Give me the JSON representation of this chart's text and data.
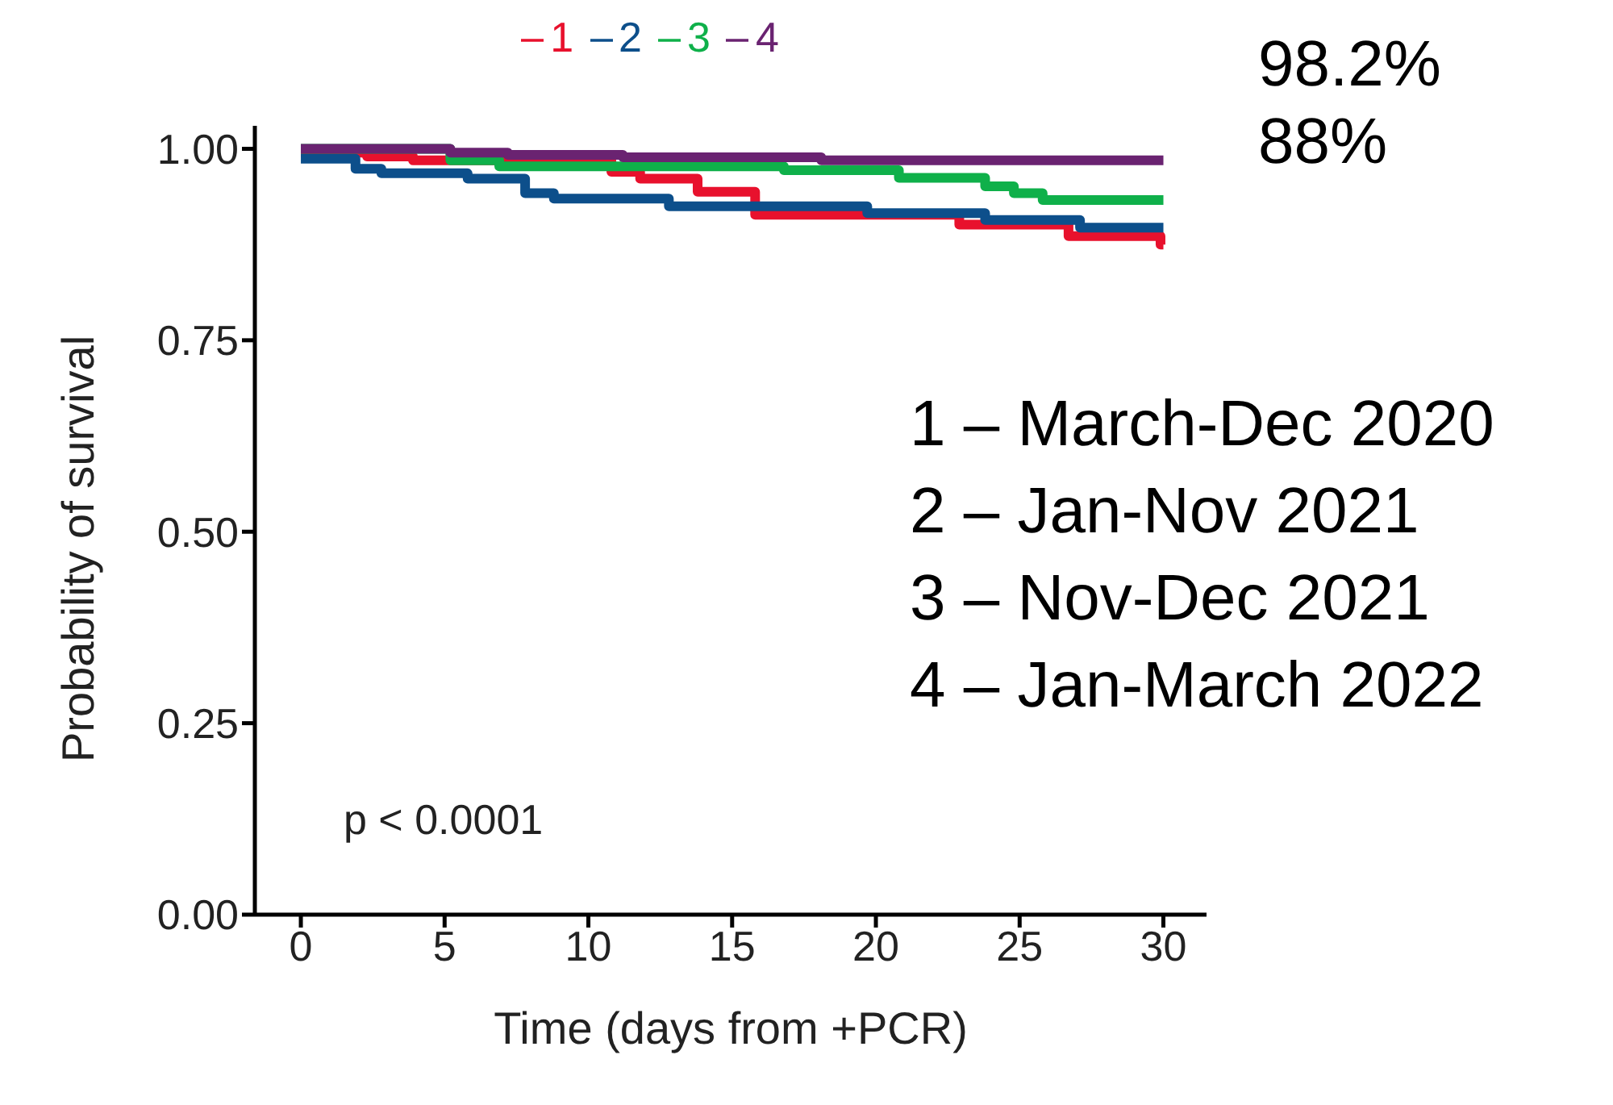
{
  "chart_data": {
    "type": "step",
    "xlabel": "Time (days from +PCR)",
    "ylabel": "Probability of survival",
    "xlim": [
      -1.6,
      31.5
    ],
    "xticks": [
      0,
      5,
      10,
      15,
      20,
      25,
      30
    ],
    "ylim": [
      0,
      1.03
    ],
    "yticks": [
      {
        "value": 0,
        "label": "0.00"
      },
      {
        "value": 0.25,
        "label": "0.25"
      },
      {
        "value": 0.5,
        "label": "0.50"
      },
      {
        "value": 0.75,
        "label": "0.75"
      },
      {
        "value": 1,
        "label": "1.00"
      }
    ],
    "legend": "top",
    "grid": false,
    "marker": "none",
    "line_style": "solid",
    "series": [
      {
        "name": "1",
        "color": "#e8112d",
        "x": [
          0,
          2.3,
          3.9,
          10.8,
          11.8,
          13.8,
          15.8,
          22.9,
          26.7,
          29.9,
          30
        ],
        "values": [
          0.995,
          0.99,
          0.985,
          0.97,
          0.961,
          0.944,
          0.914,
          0.901,
          0.886,
          0.875,
          0.875
        ]
      },
      {
        "name": "2",
        "color": "#0d4f8b",
        "x": [
          0,
          1.9,
          2.8,
          5.8,
          7.8,
          8.8,
          12.8,
          19.7,
          23.8,
          27.1,
          30
        ],
        "values": [
          0.987,
          0.974,
          0.968,
          0.961,
          0.942,
          0.935,
          0.925,
          0.916,
          0.907,
          0.897,
          0.897
        ]
      },
      {
        "name": "3",
        "color": "#0fb04a",
        "x": [
          0,
          5.2,
          6.9,
          16.8,
          20.8,
          23.8,
          24.8,
          25.8,
          30
        ],
        "values": [
          1,
          0.985,
          0.977,
          0.972,
          0.962,
          0.951,
          0.942,
          0.933,
          0.933
        ]
      },
      {
        "name": "4",
        "color": "#6a2371",
        "x": [
          0,
          5.2,
          7.2,
          11.2,
          18.1,
          30
        ],
        "values": [
          1,
          0.995,
          0.992,
          0.989,
          0.985,
          0.985
        ]
      }
    ],
    "annotations": [
      "98.2%",
      "88%",
      "1 – March-Dec 2020",
      "2 – Jan-Nov 2021",
      "3 – Nov-Dec 2021",
      "4 – Jan-March 2022",
      "p < 0.0001"
    ]
  }
}
